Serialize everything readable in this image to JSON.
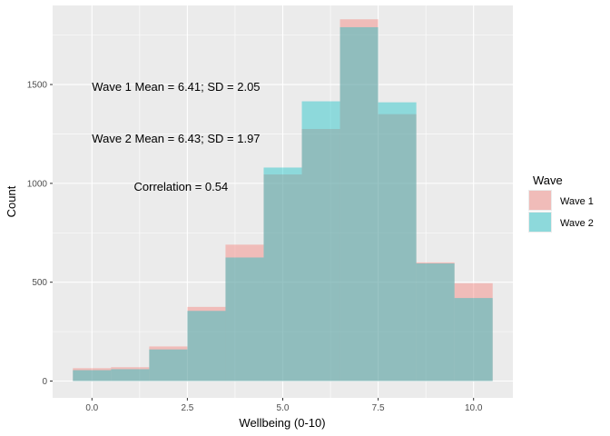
{
  "chart_data": {
    "type": "bar",
    "subtype": "overlapping-histogram",
    "xlabel": "Wellbeing (0-10)",
    "ylabel": "Count",
    "xlim": [
      -0.5,
      10.5
    ],
    "ylim": [
      0,
      1800
    ],
    "x_ticks": [
      0,
      2.5,
      5,
      7.5,
      10
    ],
    "x_tick_labels": [
      "0.0",
      "2.5",
      "5.0",
      "7.5",
      "10.0"
    ],
    "y_ticks": [
      0,
      500,
      1000,
      1500
    ],
    "y_tick_labels": [
      "0",
      "500",
      "1000",
      "1500"
    ],
    "bin_width": 1,
    "bin_centers": [
      0,
      1,
      2,
      3,
      4,
      5,
      6,
      7,
      8,
      9,
      10
    ],
    "series": [
      {
        "name": "Wave 1",
        "color": "#F8766D",
        "values": [
          65,
          70,
          175,
          375,
          690,
          1045,
          1275,
          1830,
          1350,
          600,
          495
        ]
      },
      {
        "name": "Wave 2",
        "color": "#00BFC4",
        "values": [
          55,
          60,
          160,
          355,
          625,
          1080,
          1415,
          1790,
          1410,
          595,
          420
        ]
      }
    ],
    "annotations": [
      {
        "text": "Wave 1 Mean = 6.41; SD = 2.05",
        "x": 0,
        "y": 1490
      },
      {
        "text": "Wave 2 Mean = 6.43; SD = 1.97",
        "x": 0,
        "y": 1230
      },
      {
        "text": "Correlation = 0.54",
        "x": 1.1,
        "y": 985
      }
    ],
    "legend": {
      "title": "Wave",
      "position": "right"
    },
    "grid": true,
    "panel_background": "#EBEBEB",
    "grid_color": "#FFFFFF"
  }
}
